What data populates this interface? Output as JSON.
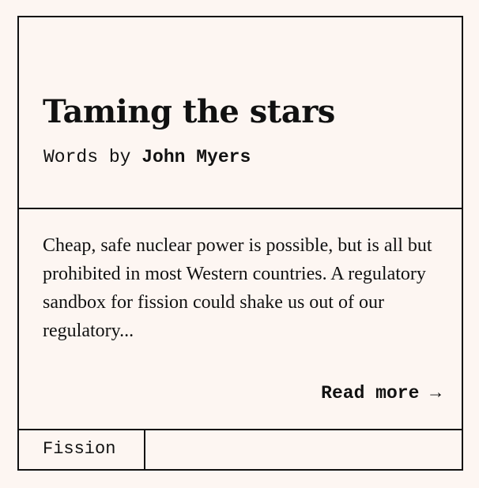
{
  "article": {
    "title": "Taming the stars",
    "byline_prefix": "Words by ",
    "author": "John Myers",
    "excerpt": "Cheap, safe nuclear power is possible, but is all but prohibited in most Western countries. A regulatory sandbox for fission could shake us out of our regulatory...",
    "read_more_label": "Read more →"
  },
  "tags": [
    {
      "label": "Fission"
    }
  ]
}
